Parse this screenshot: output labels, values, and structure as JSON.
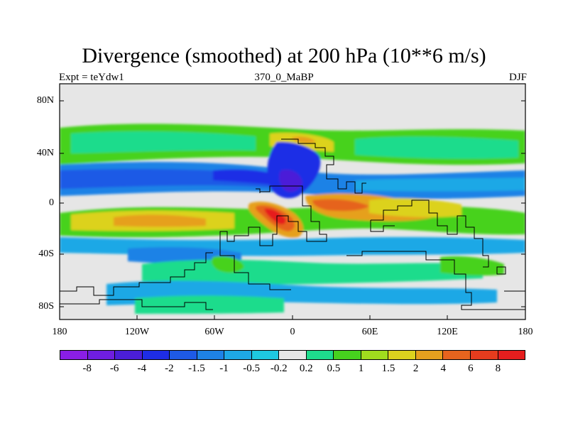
{
  "title": "Divergence (smoothed) at 200 hPa (10**6 m/s)",
  "subtitle_left": "Expt = teYdw1",
  "subtitle_center": "370_0_MaBP",
  "subtitle_right": "DJF",
  "lat_labels": [
    "80N",
    "40N",
    "0",
    "40S",
    "80S"
  ],
  "lon_labels": [
    "180",
    "120W",
    "60W",
    "0",
    "60E",
    "120E",
    "180"
  ],
  "colorbar": {
    "labels": [
      "-8",
      "-6",
      "-4",
      "-2",
      "-1.5",
      "-1",
      "-0.5",
      "-0.2",
      "0.2",
      "0.5",
      "1",
      "1.5",
      "2",
      "4",
      "6",
      "8"
    ],
    "colors": [
      "#8a1ee6",
      "#6f1ee0",
      "#4b1ed8",
      "#1e2de6",
      "#1e5ae6",
      "#1e82e6",
      "#1ea8e6",
      "#1ec8e0",
      "#e6e6e6",
      "#1edc8c",
      "#46d21e",
      "#a0dc1e",
      "#dcd21e",
      "#e6a01e",
      "#e6641e",
      "#e63c1e",
      "#e61e1e"
    ]
  },
  "chart_data": {
    "type": "heatmap",
    "title": "Divergence (smoothed) at 200 hPa (10**6 m/s)",
    "variable": "divergence",
    "level": "200 hPa",
    "experiment": "teYdw1",
    "period": "370_0_MaBP",
    "season": "DJF",
    "x_range": [
      -180,
      180
    ],
    "y_range": [
      -90,
      90
    ],
    "contour_levels": [
      -8,
      -6,
      -4,
      -2,
      -1.5,
      -1,
      -0.5,
      -0.2,
      0.2,
      0.5,
      1,
      1.5,
      2,
      4,
      6,
      8
    ],
    "features": [
      {
        "name": "equatorial convergence band",
        "value_class": "-2",
        "lon": [
          -180,
          180
        ],
        "lat": [
          0,
          25
        ]
      },
      {
        "name": "strong convergence over Tethys",
        "value_class": "-4",
        "lon": [
          -10,
          0
        ],
        "lat": [
          -5,
          40
        ]
      },
      {
        "name": "divergence maximum",
        "value_class": "8",
        "lon": [
          -20,
          -5
        ],
        "lat": [
          -25,
          -5
        ]
      },
      {
        "name": "divergence band",
        "value_class": "2",
        "lon": [
          -180,
          110
        ],
        "lat": [
          -25,
          0
        ]
      },
      {
        "name": "northern divergence belt",
        "value_class": "1",
        "lon": [
          -180,
          180
        ],
        "lat": [
          30,
          60
        ]
      },
      {
        "name": "southern divergence belt",
        "value_class": "0.5",
        "lon": [
          -150,
          120
        ],
        "lat": [
          -75,
          -35
        ]
      }
    ]
  }
}
